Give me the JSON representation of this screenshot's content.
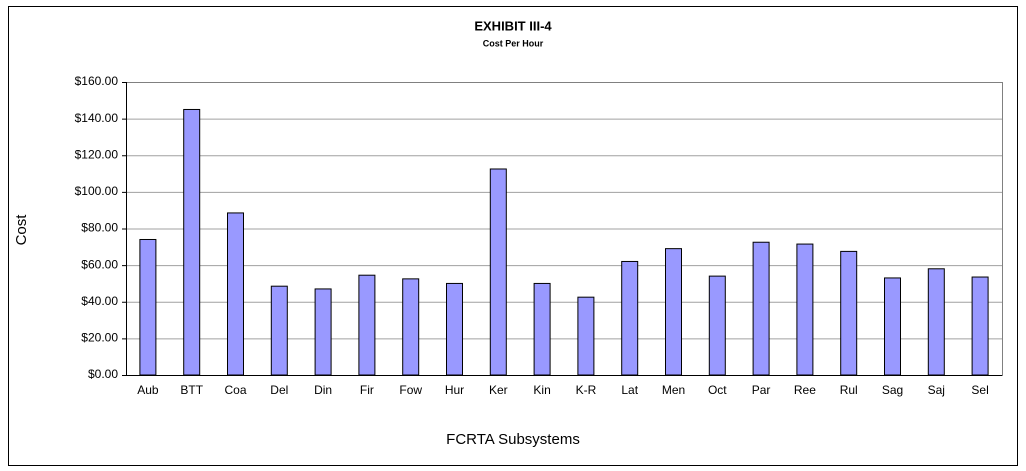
{
  "chart_data": {
    "type": "bar",
    "title": "EXHIBIT III-4",
    "subtitle": "Cost Per Hour",
    "x_label": "FCRTA Subsystems",
    "y_label": "Cost",
    "categories": [
      "Aub",
      "BTT",
      "Coa",
      "Del",
      "Din",
      "Fir",
      "Fow",
      "Hur",
      "Ker",
      "Kin",
      "K-R",
      "Lat",
      "Men",
      "Oct",
      "Par",
      "Ree",
      "Rul",
      "Sag",
      "Saj",
      "Sel"
    ],
    "values": [
      74,
      145,
      88.5,
      48.5,
      47,
      54.5,
      52.5,
      50,
      112.5,
      50,
      42.5,
      62,
      69,
      54,
      72.5,
      71.5,
      67.5,
      53,
      58,
      53.5
    ],
    "color": "#9999ff",
    "ylim": [
      0,
      160
    ],
    "yticks": [
      {
        "value": 0,
        "label": "$0.00"
      },
      {
        "value": 20,
        "label": "$20.00"
      },
      {
        "value": 40,
        "label": "$40.00"
      },
      {
        "value": 60,
        "label": "$60.00"
      },
      {
        "value": 80,
        "label": "$80.00"
      },
      {
        "value": 100,
        "label": "$100.00"
      },
      {
        "value": 120,
        "label": "$120.00"
      },
      {
        "value": 140,
        "label": "$140.00"
      },
      {
        "value": 160,
        "label": "$160.00"
      }
    ],
    "grid": true
  }
}
